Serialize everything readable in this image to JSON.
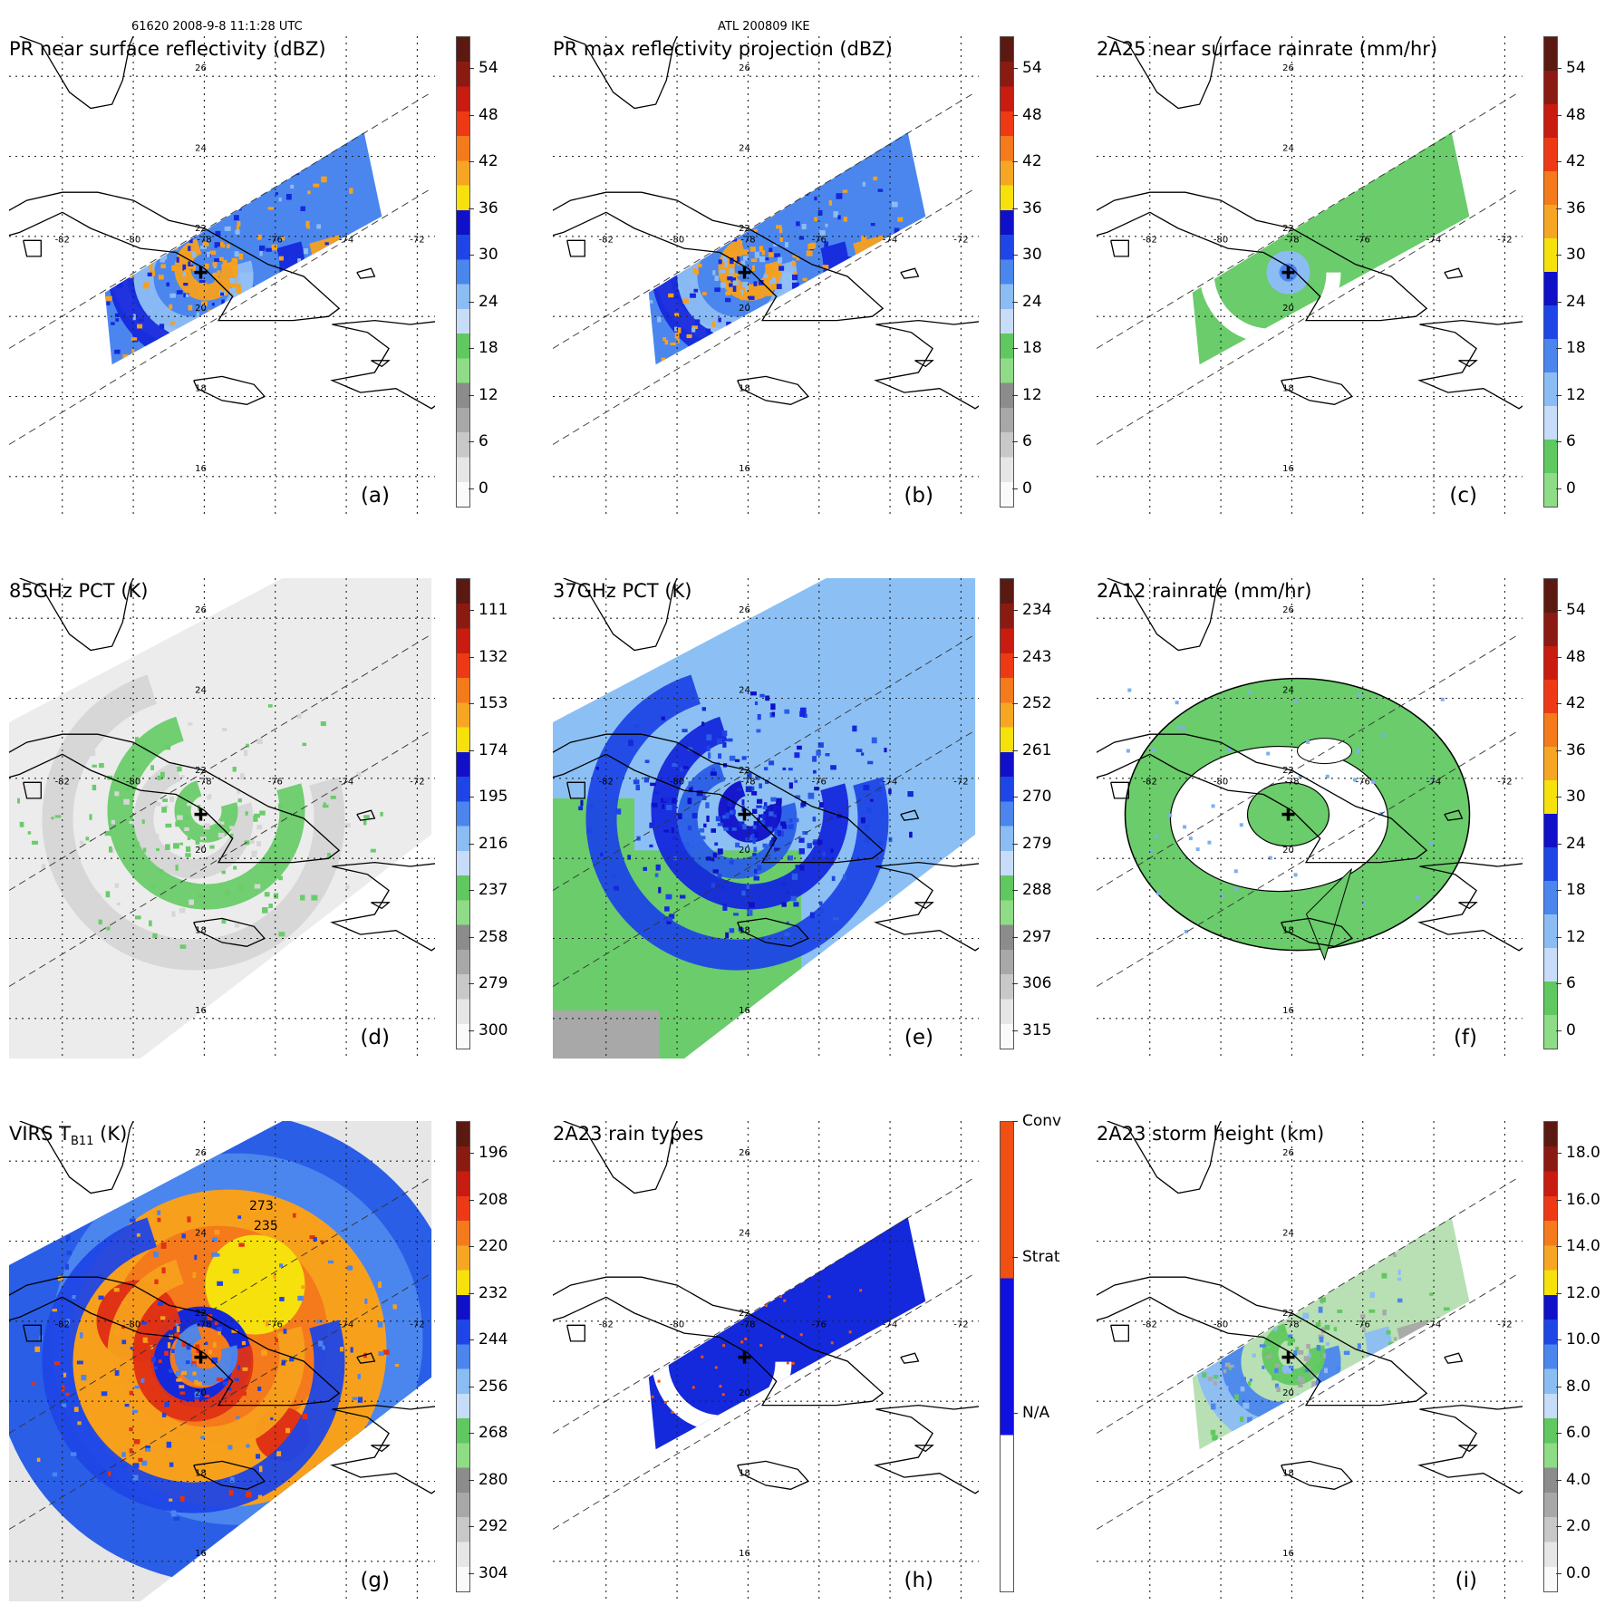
{
  "header": {
    "orbit_time": "61620 2008-9-8 11:1:28 UTC",
    "storm": "ATL 200809 IKE"
  },
  "map": {
    "lat_labels": [
      "26",
      "24",
      "22",
      "20",
      "18",
      "16"
    ],
    "lon_labels": [
      "-82",
      "-80",
      "-78",
      "-76",
      "-74",
      "-72"
    ],
    "lat_range": [
      15,
      27
    ],
    "lon_range": [
      -83.5,
      -71.5
    ],
    "storm_center": {
      "lon": -78.1,
      "lat": 21.1
    }
  },
  "panels": [
    {
      "id": "a",
      "title": "PR near surface reflectivity (dBZ)",
      "label": "(a)",
      "swath": "narrow",
      "field": "pr",
      "ticks": [
        "54",
        "48",
        "42",
        "36",
        "30",
        "24",
        "18",
        "12",
        "6",
        "0"
      ]
    },
    {
      "id": "b",
      "title": "PR max reflectivity projection (dBZ)",
      "label": "(b)",
      "swath": "narrow",
      "field": "pr",
      "ticks": [
        "54",
        "48",
        "42",
        "36",
        "30",
        "24",
        "18",
        "12",
        "6",
        "0"
      ]
    },
    {
      "id": "c",
      "title": "2A25 near surface rainrate (mm/hr)",
      "label": "(c)",
      "swath": "narrow",
      "field": "rain",
      "ticks": [
        "54",
        "48",
        "42",
        "36",
        "30",
        "24",
        "18",
        "12",
        "6",
        "0"
      ]
    },
    {
      "id": "d",
      "title": "85GHz PCT (K)",
      "label": "(d)",
      "swath": "wide",
      "field": "pct85",
      "ticks": [
        "111",
        "132",
        "153",
        "174",
        "195",
        "216",
        "237",
        "258",
        "279",
        "300"
      ]
    },
    {
      "id": "e",
      "title": "37GHz PCT (K)",
      "label": "(e)",
      "swath": "wide",
      "field": "pct37",
      "ticks": [
        "234",
        "243",
        "252",
        "261",
        "270",
        "279",
        "288",
        "297",
        "306",
        "315"
      ]
    },
    {
      "id": "f",
      "title": "2A12 rainrate (mm/hr)",
      "label": "(f)",
      "swath": "none",
      "field": "rain2a12",
      "ticks": [
        "54",
        "48",
        "42",
        "36",
        "30",
        "24",
        "18",
        "12",
        "6",
        "0"
      ]
    },
    {
      "id": "g",
      "title": "VIRS T",
      "title_sub": "B11",
      "title_tail": " (K)",
      "label": "(g)",
      "swath": "wide",
      "field": "virs",
      "ticks": [
        "196",
        "208",
        "220",
        "232",
        "244",
        "256",
        "268",
        "280",
        "292",
        "304"
      ],
      "contour_labels": [
        "273",
        "235"
      ]
    },
    {
      "id": "h",
      "title": "2A23 rain types",
      "label": "(h)",
      "swath": "narrow",
      "field": "raintype",
      "ticks": [
        "Conv",
        "Strat",
        "N/A"
      ]
    },
    {
      "id": "i",
      "title": "2A23 storm height (km)",
      "label": "(i)",
      "swath": "narrow",
      "field": "height",
      "ticks": [
        "18.0",
        "16.0",
        "14.0",
        "12.0",
        "10.0",
        "8.0",
        "6.0",
        "4.0",
        "2.0",
        "0.0"
      ]
    }
  ],
  "colorbars": {
    "pr": [
      "#5a1a12",
      "#8b1a12",
      "#c81c10",
      "#ee3a14",
      "#f47a1c",
      "#f7a624",
      "#f6e10c",
      "#1010c8",
      "#1e46e6",
      "#4a86ee",
      "#8cbcf4",
      "#c6dcf8",
      "#60c860",
      "#8edc86",
      "#8c8c8c",
      "#a8a8a8",
      "#c8c8c8",
      "#e6e6e6",
      "#fafafa"
    ],
    "pct": [
      "#5a1a12",
      "#8b1a12",
      "#c81c10",
      "#ee3a14",
      "#f47a1c",
      "#f7a624",
      "#f6e10c",
      "#1010c8",
      "#1e46e6",
      "#4a86ee",
      "#8cbcf4",
      "#c6dcf8",
      "#60c860",
      "#8edc86",
      "#8c8c8c",
      "#a8a8a8",
      "#c8c8c8",
      "#e6e6e6",
      "#fafafa"
    ],
    "rain": [
      "#5a1a12",
      "#8b1a12",
      "#c81c10",
      "#ee3a14",
      "#f47a1c",
      "#f7a624",
      "#f6e10c",
      "#1010c8",
      "#1e46e6",
      "#4a86ee",
      "#8cbcf4",
      "#c6dcf8",
      "#60c860",
      "#8edc86"
    ],
    "raintype": [
      "#f05014",
      "#1010e0",
      "#ffffff"
    ]
  },
  "colors": {
    "green": "#6acc6a",
    "blue": "#1428dc",
    "lightblue": "#7eaef0",
    "orange": "#f7a01c",
    "red": "#e03214",
    "yellow": "#f6e10c",
    "grey": "#d6d6d6",
    "lightgrey": "#ececec"
  }
}
